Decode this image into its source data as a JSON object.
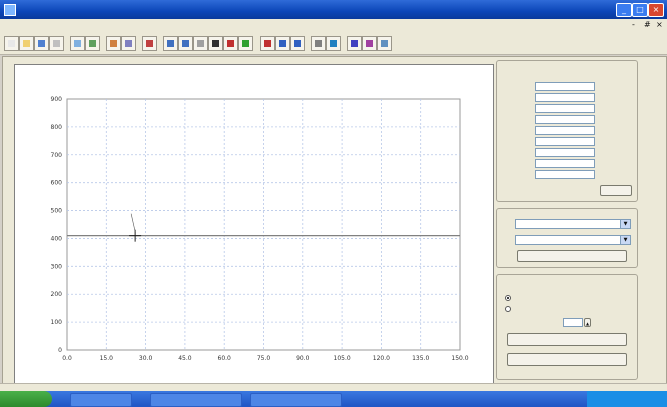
{
  "window": {
    "title": "",
    "buttons": [
      "_",
      "□",
      "×"
    ]
  },
  "menu": {
    "items": [
      "",
      "",
      "",
      ""
    ],
    "right_controls": [
      "-",
      "#",
      "×"
    ]
  },
  "toolbar": {
    "buttons": [
      "new-icon",
      "open-icon",
      "save-icon",
      "print-icon",
      "zoom-icon",
      "grid-icon",
      "chart-icon",
      "table-icon",
      "export-icon",
      "arrow-left-icon",
      "arrow-right-icon",
      "measure-icon",
      "cursor-icon",
      "target-icon",
      "run-icon",
      "stop-icon",
      "help-icon",
      "info-icon",
      "settings-icon",
      "line-chart-icon",
      "bar-chart-icon",
      "color-icon",
      "tool-icon"
    ]
  },
  "chart_data": {
    "type": "line",
    "title": "",
    "xlabel": "",
    "ylabel": "",
    "xlim": [
      0,
      180
    ],
    "ylim": [
      0,
      900
    ],
    "x_ticks": [
      "0.0",
      "15.0",
      "30.0",
      "45.0",
      "60.0",
      "75.0",
      "90.0",
      "105.0",
      "120.0",
      "135.0",
      "150.0"
    ],
    "y_ticks": [
      "0",
      "100",
      "200",
      "300",
      "400",
      "500",
      "600",
      "700",
      "800",
      "900"
    ],
    "grid": true,
    "series": [
      {
        "x": [
          0,
          150
        ],
        "y": [
          410,
          410
        ],
        "color": "#808080"
      }
    ],
    "marker": {
      "x": 26,
      "y": 410,
      "label_lines": [
        "",
        "",
        ""
      ]
    }
  },
  "panel": {
    "params_group_title": "",
    "params_subtitle": "",
    "params": [
      {
        "label": "",
        "value": "",
        "unit": ""
      },
      {
        "label": "",
        "value": "",
        "unit": ""
      },
      {
        "label": "",
        "value": "",
        "unit": ""
      },
      {
        "label": "",
        "value": "",
        "unit": ""
      },
      {
        "label": "",
        "value": "",
        "unit": ""
      },
      {
        "label": "",
        "value": "",
        "unit": ""
      },
      {
        "label": "",
        "value": "",
        "unit": ""
      },
      {
        "label": "",
        "value": "",
        "unit": ""
      },
      {
        "label": "",
        "value": "",
        "unit": ""
      }
    ],
    "params_button": "",
    "axis_group_title": "",
    "axis_rows": [
      {
        "label": "",
        "value": ""
      },
      {
        "label": "",
        "value": ""
      }
    ],
    "axis_button": "",
    "test_group_title": "",
    "mode_label": "",
    "modes": [
      {
        "label": "",
        "selected": true
      },
      {
        "label": "",
        "selected": false
      }
    ],
    "interval_label": "",
    "interval_value": "",
    "interval_unit": "",
    "start_button": "",
    "stop_button": ""
  },
  "taskbar": {
    "start_label": "",
    "tasks": [
      "",
      "",
      ""
    ],
    "clock": ""
  }
}
